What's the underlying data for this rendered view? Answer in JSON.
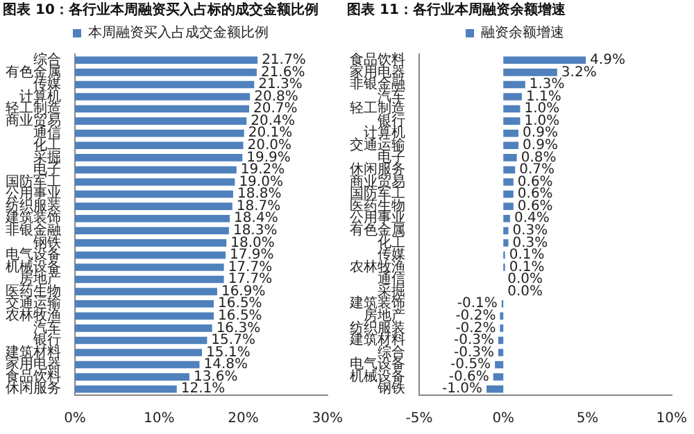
{
  "chart_data": [
    {
      "type": "bar",
      "orientation": "horizontal",
      "title": "图表 10：各行业本周融资买入占标的成交金额比例",
      "legend": "top",
      "categories": [
        "综合",
        "有色金属",
        "传媒",
        "计算机",
        "轻工制造",
        "商业贸易",
        "通信",
        "化工",
        "采掘",
        "电子",
        "国防军工",
        "公用事业",
        "纺织服装",
        "建筑装饰",
        "非银金融",
        "钢铁",
        "电气设备",
        "机械设备",
        "房地产",
        "医药生物",
        "交通运输",
        "农林牧渔",
        "汽车",
        "银行",
        "建筑材料",
        "家用电器",
        "食品饮料",
        "休闲服务"
      ],
      "series": [
        {
          "name": "本周融资买入占成交金额比例",
          "color": "#4f81bd",
          "values": [
            21.7,
            21.6,
            21.3,
            20.8,
            20.7,
            20.4,
            20.1,
            20.0,
            19.9,
            19.2,
            19.0,
            18.8,
            18.7,
            18.4,
            18.3,
            18.0,
            17.9,
            17.7,
            17.7,
            16.9,
            16.5,
            16.5,
            16.3,
            15.7,
            15.1,
            14.8,
            13.6,
            12.1
          ],
          "value_labels": [
            "21.7%",
            "21.6%",
            "21.3%",
            "20.8%",
            "20.7%",
            "20.4%",
            "20.1%",
            "20.0%",
            "19.9%",
            "19.2%",
            "19.0%",
            "18.8%",
            "18.7%",
            "18.4%",
            "18.3%",
            "18.0%",
            "17.9%",
            "17.7%",
            "17.7%",
            "16.9%",
            "16.5%",
            "16.5%",
            "16.3%",
            "15.7%",
            "15.1%",
            "14.8%",
            "13.6%",
            "12.1%"
          ]
        }
      ],
      "xlim": [
        0,
        30
      ],
      "xticks": [
        {
          "value": 0,
          "label": "0%"
        },
        {
          "value": 10,
          "label": "10%"
        },
        {
          "value": 20,
          "label": "20%"
        },
        {
          "value": 30,
          "label": "30%"
        }
      ]
    },
    {
      "type": "bar",
      "orientation": "horizontal",
      "title": "图表 11：各行业本周融资余额增速",
      "legend": "top",
      "categories": [
        "食品饮料",
        "家用电器",
        "非银金融",
        "汽车",
        "轻工制造",
        "银行",
        "计算机",
        "交通运输",
        "电子",
        "休闲服务",
        "商业贸易",
        "国防军工",
        "医药生物",
        "公用事业",
        "有色金属",
        "化工",
        "传媒",
        "农林牧渔",
        "通信",
        "采掘",
        "建筑装饰",
        "房地产",
        "纺织服装",
        "建筑材料",
        "综合",
        "电气设备",
        "机械设备",
        "钢铁"
      ],
      "series": [
        {
          "name": "融资余额增速",
          "color": "#4f81bd",
          "values": [
            4.9,
            3.2,
            1.3,
            1.1,
            1.0,
            1.0,
            0.9,
            0.9,
            0.8,
            0.7,
            0.6,
            0.6,
            0.6,
            0.4,
            0.3,
            0.3,
            0.1,
            0.1,
            0.0,
            0.0,
            -0.1,
            -0.2,
            -0.2,
            -0.3,
            -0.3,
            -0.5,
            -0.6,
            -1.0
          ],
          "value_labels": [
            "4.9%",
            "3.2%",
            "1.3%",
            "1.1%",
            "1.0%",
            "1.0%",
            "0.9%",
            "0.9%",
            "0.8%",
            "0.7%",
            "0.6%",
            "0.6%",
            "0.6%",
            "0.4%",
            "0.3%",
            "0.3%",
            "0.1%",
            "0.1%",
            "0.0%",
            "0.0%",
            "-0.1%",
            "-0.2%",
            "-0.2%",
            "-0.3%",
            "-0.3%",
            "-0.5%",
            "-0.6%",
            "-1.0%"
          ]
        }
      ],
      "xlim": [
        -5,
        10
      ],
      "xticks": [
        {
          "value": -5,
          "label": "-5%"
        },
        {
          "value": 0,
          "label": "0%"
        },
        {
          "value": 5,
          "label": "5%"
        },
        {
          "value": 10,
          "label": "10%"
        }
      ]
    }
  ]
}
